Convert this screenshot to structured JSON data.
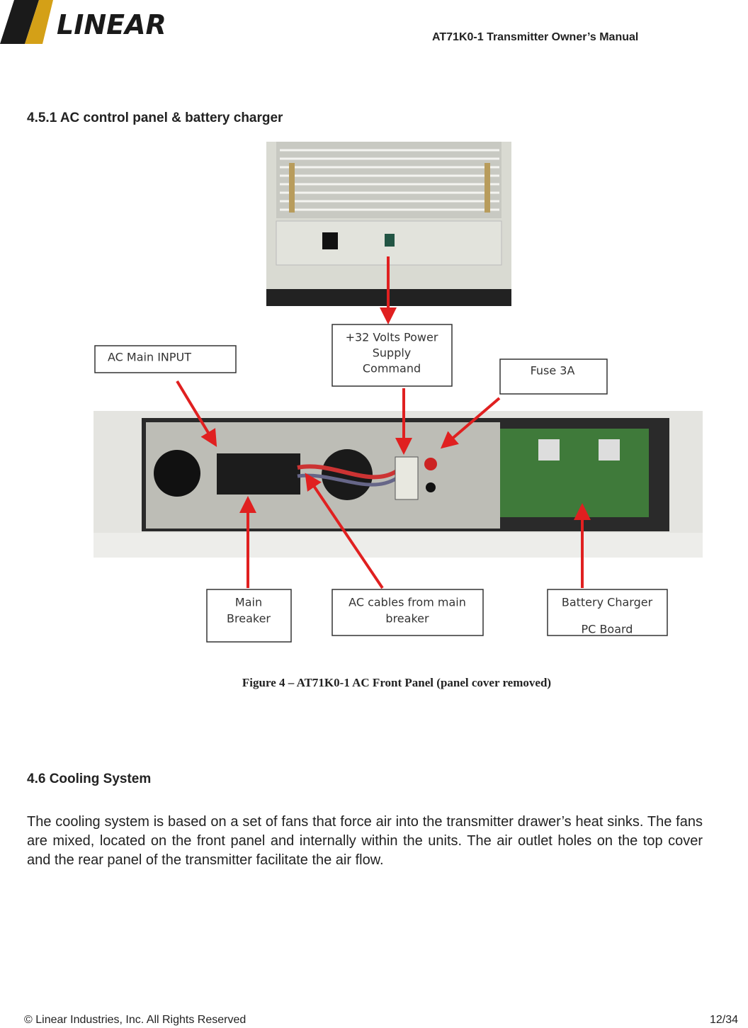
{
  "header": {
    "logo": "LINEAR",
    "title": "AT71K0-1 Transmitter Owner’s Manual"
  },
  "section_1": {
    "heading": "4.5.1 AC control panel & battery charger"
  },
  "figure": {
    "callouts": [
      {
        "lines": [
          "AC Main INPUT"
        ]
      },
      {
        "lines": [
          "+32 Volts Power",
          "Supply",
          "Command"
        ]
      },
      {
        "lines": [
          "Fuse 3A"
        ]
      },
      {
        "lines": [
          "Main",
          "Breaker"
        ]
      },
      {
        "lines": [
          "AC cables from main",
          "breaker"
        ]
      },
      {
        "lines": [
          "Battery Charger",
          "PC Board"
        ]
      }
    ],
    "caption": "Figure 4 – AT71K0-1 AC Front Panel (panel cover removed)"
  },
  "section_2": {
    "heading": "4.6 Cooling System",
    "body": "The cooling system is based on a set of fans that force air into the transmitter drawer’s heat sinks. The fans are mixed, located on the front panel and internally within the units. The air outlet holes on the top cover and the rear panel of the transmitter facilitate the air flow."
  },
  "footer": {
    "copyright": "© Linear Industries, Inc. All Rights Reserved",
    "page": "12/34"
  }
}
